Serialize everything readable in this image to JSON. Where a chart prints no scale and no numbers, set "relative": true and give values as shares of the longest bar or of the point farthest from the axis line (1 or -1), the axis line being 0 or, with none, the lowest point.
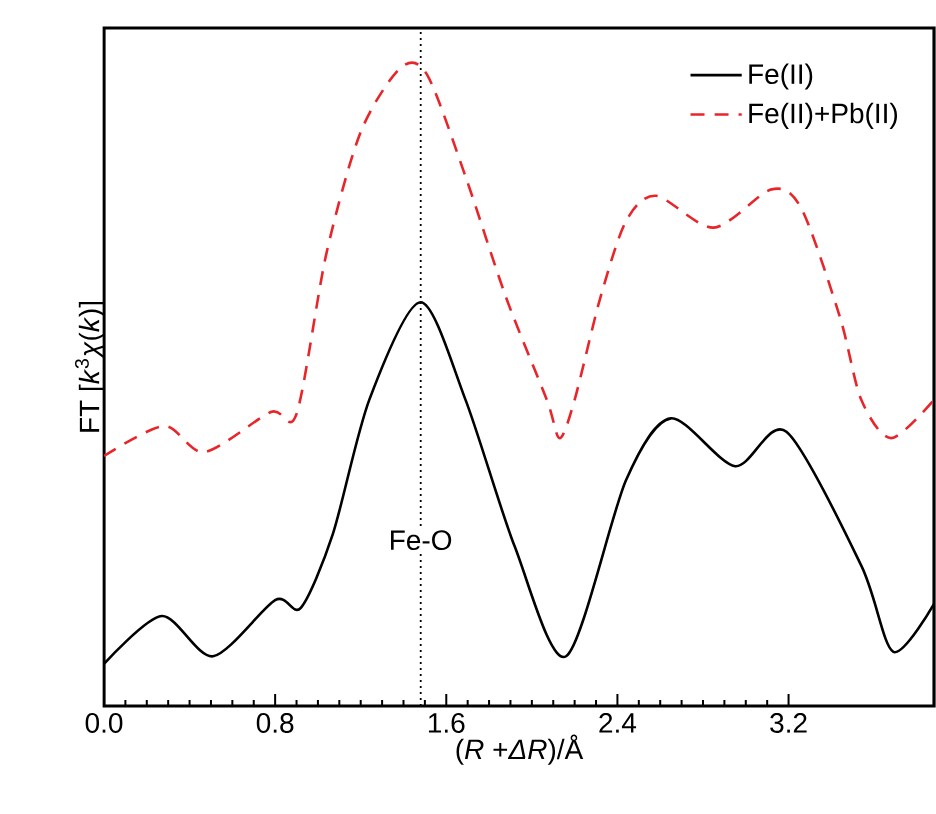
{
  "chart_data": {
    "type": "line",
    "relative": true,
    "xlabel": "(*R* +*ΔR*)/Å",
    "ylabel": "FT [*k*$^{3}$*χ*(*k*)]",
    "xlim": [
      0,
      3.88
    ],
    "xticks": [
      {
        "value": 0,
        "label": "0.0"
      },
      0.8,
      1.6,
      2.4,
      3.2
    ],
    "legend": "top right",
    "tick_labels": "x",
    "ref_lines": [
      {
        "axis": "x",
        "value": 1.48,
        "line_style": "dotted",
        "color": "#000000"
      }
    ],
    "annotations": [
      {
        "text": "Fe-O",
        "x": 1.48,
        "y": 0.26
      }
    ],
    "series": [
      {
        "name": "Fe(II)",
        "color": "#000000",
        "line_style": "solid",
        "x": [
          0,
          0.27,
          0.51,
          0.8,
          0.92,
          1.07,
          1.24,
          1.48,
          1.69,
          1.92,
          2.16,
          2.44,
          2.65,
          2.95,
          3.19,
          3.54,
          3.69,
          3.88
        ],
        "values": [
          0.066,
          0.141,
          0.078,
          0.166,
          0.154,
          0.27,
          0.48,
          0.633,
          0.48,
          0.25,
          0.078,
          0.354,
          0.451,
          0.376,
          0.43,
          0.22,
          0.085,
          0.16
        ]
      },
      {
        "name": "Fe(II)+Pb(II)",
        "color": "#e8262a",
        "line_style": "dashed",
        "x": [
          0,
          0.28,
          0.47,
          0.78,
          0.9,
          1.04,
          1.2,
          1.385,
          1.51,
          1.69,
          1.88,
          2.07,
          2.13,
          2.2,
          2.32,
          2.44,
          2.58,
          2.85,
          3.12,
          3.26,
          3.44,
          3.54,
          3.68,
          3.88
        ],
        "values": [
          0.392,
          0.439,
          0.398,
          0.461,
          0.458,
          0.71,
          0.9,
          1.0,
          0.99,
          0.83,
          0.64,
          0.48,
          0.42,
          0.48,
          0.64,
          0.76,
          0.8,
          0.75,
          0.81,
          0.78,
          0.61,
          0.48,
          0.42,
          0.48
        ]
      }
    ]
  }
}
